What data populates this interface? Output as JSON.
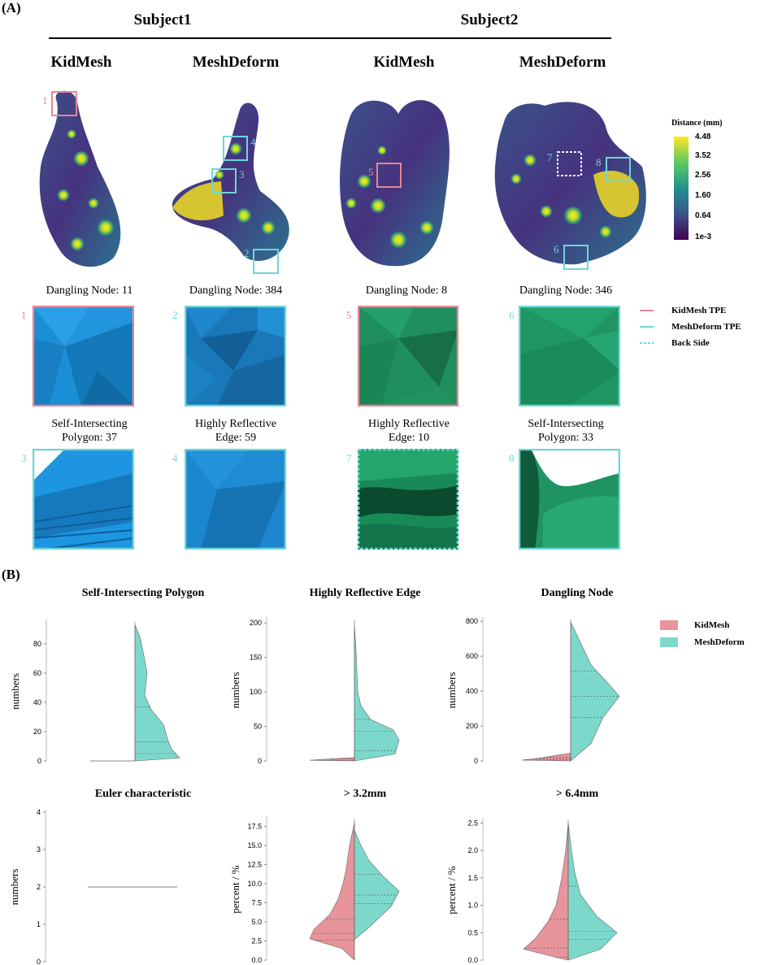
{
  "panel_a_label": "(A)",
  "panel_b_label": "(B)",
  "subjects": [
    "Subject1",
    "Subject2"
  ],
  "methods": [
    "KidMesh",
    "MeshDeform",
    "KidMesh",
    "MeshDeform"
  ],
  "box_numbers": [
    "1",
    "2",
    "3",
    "4",
    "5",
    "6",
    "7",
    "8"
  ],
  "colorbar": {
    "title": "Distance (mm)",
    "ticks": [
      "4.48",
      "3.52",
      "2.56",
      "1.60",
      "0.64",
      "1e-3"
    ],
    "colors": [
      "#fde725",
      "#5ec962",
      "#21918c",
      "#3b528b",
      "#440154"
    ]
  },
  "captions_row1": [
    "Dangling Node: 11",
    "Dangling Node: 384",
    "Dangling Node: 8",
    "Dangling Node: 346"
  ],
  "captions_row2": [
    [
      "Self-Intersecting",
      "Polygon: 37"
    ],
    [
      "Highly Reflective",
      "Edge: 59"
    ],
    [
      "Highly Reflective",
      "Edge: 10"
    ],
    [
      "Self-Intersecting",
      "Polygon: 33"
    ]
  ],
  "legend_a": [
    "KidMesh TPE",
    "MeshDeform TPE",
    "Back Side"
  ],
  "legend_b": [
    "KidMesh",
    "MeshDeform"
  ],
  "colors": {
    "kidmesh": "#e8949b",
    "meshdeform": "#7dd8cc",
    "kidmesh_edge": "#e5858f",
    "meshdeform_edge": "#6fd6d6"
  },
  "chart_data": [
    {
      "type": "violin",
      "title": "Self-Intersecting Polygon",
      "ylabel": "numbers",
      "ylim": [
        0,
        95
      ],
      "yticks": [
        0,
        20,
        40,
        60,
        80
      ],
      "series": [
        {
          "name": "KidMesh",
          "values": [
            0,
            0
          ],
          "quartiles": [
            0,
            0,
            0
          ]
        },
        {
          "name": "MeshDeform",
          "range": [
            0,
            93
          ],
          "quartiles": [
            5,
            13,
            37
          ]
        }
      ]
    },
    {
      "type": "violin",
      "title": "Highly Reflective Edge",
      "ylabel": "numbers",
      "ylim": [
        0,
        205
      ],
      "yticks": [
        0,
        50,
        100,
        150,
        200
      ],
      "series": [
        {
          "name": "KidMesh",
          "range": [
            0,
            5
          ],
          "quartiles": [
            0,
            1,
            3
          ]
        },
        {
          "name": "MeshDeform",
          "range": [
            0,
            196
          ],
          "quartiles": [
            15,
            43,
            60
          ]
        }
      ]
    },
    {
      "type": "violin",
      "title": "Dangling Node",
      "ylabel": "numbers",
      "ylim": [
        0,
        810
      ],
      "yticks": [
        0,
        200,
        400,
        600,
        800
      ],
      "series": [
        {
          "name": "KidMesh",
          "range": [
            0,
            45
          ],
          "quartiles": [
            5,
            12,
            20
          ]
        },
        {
          "name": "MeshDeform",
          "range": [
            0,
            795
          ],
          "quartiles": [
            250,
            370,
            515
          ]
        }
      ]
    },
    {
      "type": "violin",
      "title": "Euler characteristic",
      "ylabel": "numbers",
      "ylim": [
        0,
        4
      ],
      "yticks": [
        0,
        1,
        2,
        3,
        4
      ],
      "series": [
        {
          "name": "KidMesh",
          "values": [
            2
          ]
        },
        {
          "name": "MeshDeform",
          "values": [
            2
          ]
        }
      ]
    },
    {
      "type": "violin",
      "title": "> 3.2mm",
      "ylabel": "percent / %",
      "ylim": [
        0,
        18.5
      ],
      "yticks": [
        0.0,
        2.5,
        5.0,
        7.5,
        10.0,
        12.5,
        15.0,
        17.5
      ],
      "series": [
        {
          "name": "KidMesh",
          "range": [
            0,
            18
          ],
          "quartiles": [
            2.6,
            3.5,
            5.4
          ]
        },
        {
          "name": "MeshDeform",
          "range": [
            2.7,
            17
          ],
          "quartiles": [
            7.4,
            8.5,
            11.2
          ]
        }
      ]
    },
    {
      "type": "violin",
      "title": "> 6.4mm",
      "ylabel": "percent / %",
      "ylim": [
        0,
        2.55
      ],
      "yticks": [
        0.0,
        0.5,
        1.0,
        1.5,
        2.0,
        2.5
      ],
      "series": [
        {
          "name": "KidMesh",
          "range": [
            0,
            2.5
          ],
          "quartiles": [
            0.05,
            0.22,
            0.75
          ]
        },
        {
          "name": "MeshDeform",
          "range": [
            0,
            2.5
          ],
          "quartiles": [
            0.38,
            0.53,
            1.35
          ]
        }
      ]
    }
  ]
}
